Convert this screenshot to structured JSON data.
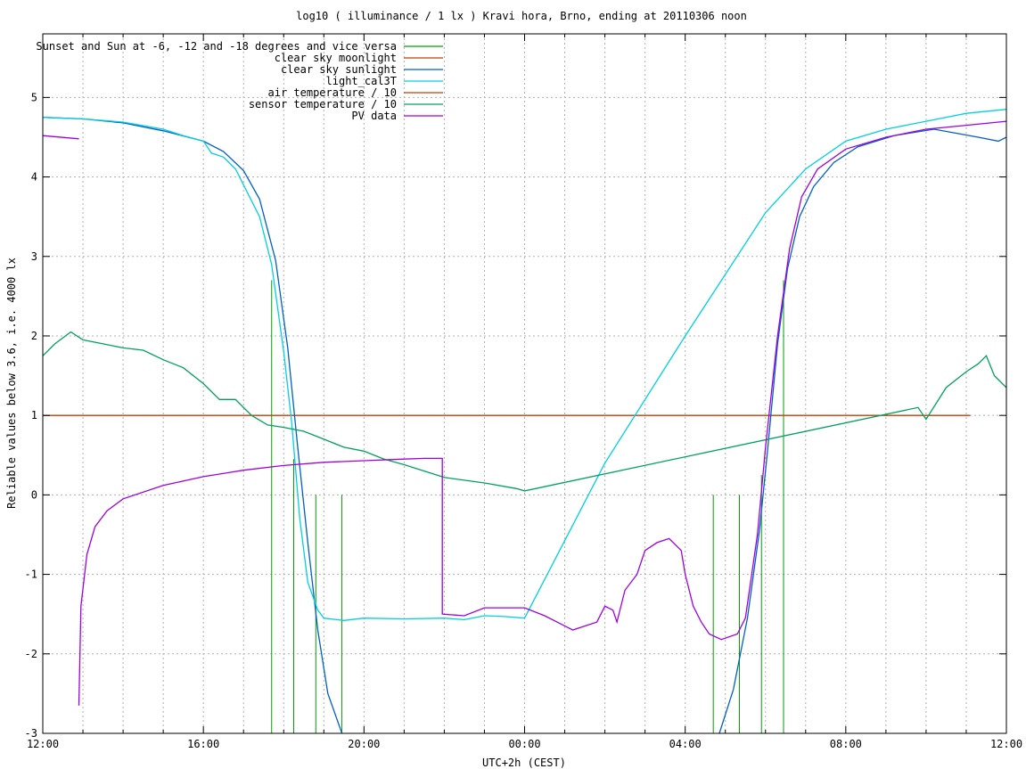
{
  "chart_data": {
    "type": "line",
    "title": "log10 ( illuminance / 1 lx ) Kravi hora, Brno, ending at 20110306 noon",
    "xlabel": "UTC+2h (CEST)",
    "ylabel": "Reliable values below 3.6, i.e. 4000 lx",
    "xlim": [
      0,
      24
    ],
    "ylim": [
      -3,
      5.8
    ],
    "x_unit": "hours since 12:00",
    "x_ticks": [
      {
        "x": 0,
        "label": "12:00"
      },
      {
        "x": 4,
        "label": "16:00"
      },
      {
        "x": 8,
        "label": "20:00"
      },
      {
        "x": 12,
        "label": "00:00"
      },
      {
        "x": 16,
        "label": "04:00"
      },
      {
        "x": 20,
        "label": "08:00"
      },
      {
        "x": 24,
        "label": "12:00"
      }
    ],
    "y_ticks": [
      -3,
      -2,
      -1,
      0,
      1,
      2,
      3,
      4,
      5
    ],
    "grid": true,
    "legend_position": "top-left",
    "series": [
      {
        "name": "Sunset and Sun at -6, -12 and -18 degrees and vice versa",
        "color": "#00a000",
        "style": "impulses",
        "impulses": [
          {
            "x": 5.7,
            "top": 2.7
          },
          {
            "x": 6.25,
            "top": 0.45
          },
          {
            "x": 6.8,
            "top": 0
          },
          {
            "x": 7.45,
            "top": 0
          },
          {
            "x": 16.7,
            "top": 0
          },
          {
            "x": 17.35,
            "top": 0
          },
          {
            "x": 17.9,
            "top": 0.25
          },
          {
            "x": 18.45,
            "top": 2.7
          }
        ]
      },
      {
        "name": "clear sky moonlight",
        "color": "#c04000",
        "points": [
          [
            0,
            1
          ],
          [
            23.1,
            1
          ]
        ]
      },
      {
        "name": "clear sky sunlight",
        "color": "#0060c0",
        "points": [
          [
            0,
            4.75
          ],
          [
            1,
            4.73
          ],
          [
            2,
            4.68
          ],
          [
            3,
            4.58
          ],
          [
            4,
            4.45
          ],
          [
            4.5,
            4.32
          ],
          [
            5,
            4.08
          ],
          [
            5.4,
            3.72
          ],
          [
            5.8,
            2.95
          ],
          [
            6.1,
            1.85
          ],
          [
            6.35,
            0.6
          ],
          [
            6.6,
            -0.6
          ],
          [
            6.85,
            -1.7
          ],
          [
            7.1,
            -2.5
          ],
          [
            7.45,
            -3.0
          ]
        ],
        "points_2": [
          [
            16.85,
            -3.0
          ],
          [
            17.2,
            -2.45
          ],
          [
            17.55,
            -1.55
          ],
          [
            17.85,
            -0.45
          ],
          [
            18.05,
            0.55
          ],
          [
            18.3,
            1.9
          ],
          [
            18.55,
            2.85
          ],
          [
            18.85,
            3.5
          ],
          [
            19.2,
            3.88
          ],
          [
            19.7,
            4.18
          ],
          [
            20.3,
            4.38
          ],
          [
            21.2,
            4.52
          ],
          [
            22.2,
            4.6
          ],
          [
            23.3,
            4.5
          ],
          [
            23.8,
            4.45
          ],
          [
            24,
            4.5
          ]
        ]
      },
      {
        "name": "light_cal3T",
        "color": "#00d0e0",
        "points": [
          [
            0,
            4.75
          ],
          [
            0.5,
            4.74
          ],
          [
            1,
            4.73
          ],
          [
            2,
            4.69
          ],
          [
            3,
            4.6
          ],
          [
            3.5,
            4.52
          ],
          [
            4,
            4.45
          ],
          [
            4.2,
            4.3
          ],
          [
            4.5,
            4.25
          ],
          [
            4.8,
            4.1
          ],
          [
            5.1,
            3.8
          ],
          [
            5.4,
            3.5
          ],
          [
            5.7,
            2.9
          ],
          [
            6,
            1.8
          ],
          [
            6.2,
            0.9
          ],
          [
            6.4,
            -0.3
          ],
          [
            6.6,
            -1.1
          ],
          [
            6.85,
            -1.45
          ],
          [
            7,
            -1.55
          ],
          [
            7.5,
            -1.58
          ],
          [
            8,
            -1.55
          ],
          [
            9,
            -1.56
          ],
          [
            10,
            -1.55
          ],
          [
            10.5,
            -1.57
          ],
          [
            11,
            -1.52
          ],
          [
            11.5,
            -1.53
          ],
          [
            12,
            -1.55
          ],
          [
            14,
            0.4
          ],
          [
            16,
            2.0
          ],
          [
            18,
            3.55
          ],
          [
            19,
            4.1
          ],
          [
            20,
            4.45
          ],
          [
            21,
            4.6
          ],
          [
            22,
            4.7
          ],
          [
            23,
            4.8
          ],
          [
            24,
            4.85
          ]
        ]
      },
      {
        "name": "air temperature / 10",
        "color": "#c04000",
        "points": []
      },
      {
        "name": "sensor temperature / 10",
        "color": "#00a060",
        "points": [
          [
            0,
            1.75
          ],
          [
            0.3,
            1.9
          ],
          [
            0.7,
            2.05
          ],
          [
            1,
            1.95
          ],
          [
            1.5,
            1.9
          ],
          [
            2,
            1.85
          ],
          [
            2.5,
            1.82
          ],
          [
            3,
            1.7
          ],
          [
            3.5,
            1.6
          ],
          [
            4,
            1.4
          ],
          [
            4.4,
            1.2
          ],
          [
            4.8,
            1.2
          ],
          [
            5.2,
            1.0
          ],
          [
            5.6,
            0.88
          ],
          [
            6,
            0.85
          ],
          [
            6.5,
            0.8
          ],
          [
            7,
            0.7
          ],
          [
            7.5,
            0.6
          ],
          [
            8,
            0.55
          ],
          [
            8.5,
            0.45
          ],
          [
            9,
            0.38
          ],
          [
            9.5,
            0.3
          ],
          [
            10,
            0.22
          ],
          [
            11,
            0.15
          ],
          [
            11.8,
            0.08
          ],
          [
            12,
            0.05
          ],
          [
            21.8,
            1.1
          ],
          [
            22,
            0.95
          ],
          [
            22.5,
            1.35
          ],
          [
            23,
            1.55
          ],
          [
            23.3,
            1.65
          ],
          [
            23.5,
            1.75
          ],
          [
            23.7,
            1.5
          ],
          [
            24,
            1.35
          ]
        ]
      },
      {
        "name": "PV data",
        "color": "#a000e0",
        "points": [
          [
            0.9,
            -2.65
          ],
          [
            0.95,
            -1.4
          ],
          [
            1.1,
            -0.75
          ],
          [
            1.3,
            -0.4
          ],
          [
            1.6,
            -0.2
          ],
          [
            2,
            -0.05
          ],
          [
            3,
            0.12
          ],
          [
            4,
            0.23
          ],
          [
            5,
            0.31
          ],
          [
            6,
            0.37
          ],
          [
            7,
            0.41
          ],
          [
            8,
            0.43
          ],
          [
            9,
            0.45
          ],
          [
            9.5,
            0.46
          ],
          [
            9.95,
            0.46
          ],
          [
            9.95,
            -1.5
          ],
          [
            10.5,
            -1.52
          ],
          [
            11,
            -1.42
          ],
          [
            12,
            -1.42
          ],
          [
            12.5,
            -1.52
          ],
          [
            13.2,
            -1.7
          ],
          [
            13.8,
            -1.6
          ],
          [
            14,
            -1.4
          ],
          [
            14.2,
            -1.45
          ],
          [
            14.3,
            -1.6
          ],
          [
            14.5,
            -1.2
          ],
          [
            14.8,
            -1.0
          ],
          [
            15.0,
            -0.7
          ],
          [
            15.3,
            -0.6
          ],
          [
            15.6,
            -0.55
          ],
          [
            15.9,
            -0.7
          ],
          [
            16,
            -1.0
          ],
          [
            16.2,
            -1.4
          ],
          [
            16.4,
            -1.6
          ],
          [
            16.6,
            -1.75
          ],
          [
            16.9,
            -1.82
          ],
          [
            17.3,
            -1.75
          ],
          [
            17.5,
            -1.55
          ],
          [
            17.8,
            -0.5
          ],
          [
            18,
            0.6
          ],
          [
            18.3,
            2.0
          ],
          [
            18.6,
            3.1
          ],
          [
            18.9,
            3.75
          ],
          [
            19.3,
            4.1
          ],
          [
            20,
            4.35
          ],
          [
            21,
            4.5
          ],
          [
            22,
            4.6
          ],
          [
            23,
            4.65
          ],
          [
            24,
            4.7
          ]
        ],
        "points_2": [
          [
            0,
            4.52
          ],
          [
            0.9,
            4.48
          ]
        ]
      }
    ]
  }
}
